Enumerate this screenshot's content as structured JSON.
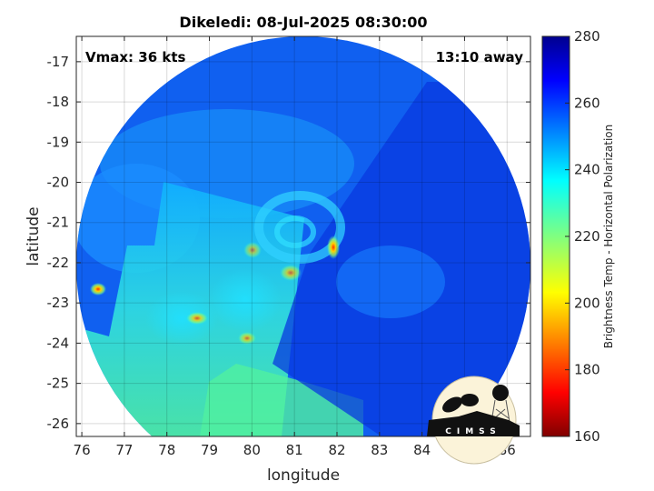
{
  "title": "Dikeledi: 08-Jul-2025 08:30:00",
  "annotations": {
    "vmax": "Vmax: 36 kts",
    "time_away": "13:10 away"
  },
  "logo_text": "CIMSS",
  "chart_data": {
    "type": "heatmap",
    "title": "Dikeledi: 08-Jul-2025 08:30:00",
    "xlabel": "longitude",
    "ylabel": "latitude",
    "xlim": [
      75.87,
      86.55
    ],
    "ylim": [
      -26.32,
      -16.37
    ],
    "xticks": [
      "76",
      "77",
      "78",
      "79",
      "80",
      "81",
      "82",
      "83",
      "84",
      "85",
      "86"
    ],
    "yticks": [
      "-17",
      "-18",
      "-19",
      "-20",
      "-21",
      "-22",
      "-23",
      "-24",
      "-25",
      "-26"
    ],
    "grid": true,
    "colorbar": {
      "label": "Brightness Temp - Horizontal Polarization",
      "range": [
        160,
        280
      ],
      "ticks": [
        "280",
        "260",
        "240",
        "220",
        "200",
        "180",
        "160"
      ],
      "colormap": "jet"
    },
    "features": [
      {
        "name": "warm-ring center",
        "lon": 81.0,
        "lat": -21.3
      },
      {
        "name": "cold spot",
        "lon": 81.9,
        "lat": -21.6
      },
      {
        "name": "cold spot",
        "lon": 76.4,
        "lat": -22.7
      },
      {
        "name": "cold spot",
        "lon": 78.7,
        "lat": -23.4
      },
      {
        "name": "cold spot",
        "lon": 80.9,
        "lat": -22.3
      }
    ]
  },
  "colors": {
    "cold_end": "#800000",
    "warm_end": "#00008f"
  }
}
